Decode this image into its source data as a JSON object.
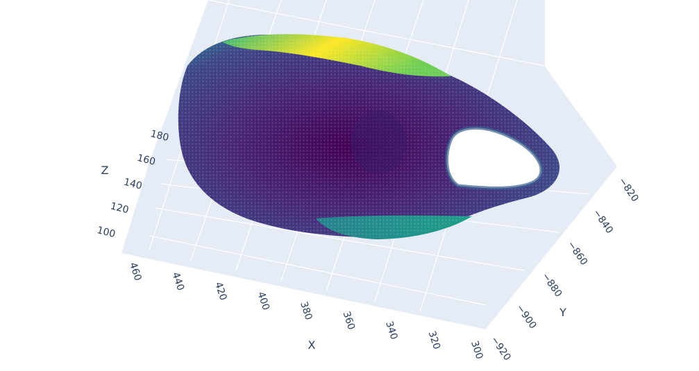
{
  "chart_data": {
    "type": "scatter",
    "subtype": "3d-point-cloud",
    "title": "",
    "colorscale": "viridis",
    "colorscale_stops": [
      "#440154",
      "#482878",
      "#3e4989",
      "#31688e",
      "#26828e",
      "#1f9e89",
      "#35b779",
      "#6ece58",
      "#b5de2b",
      "#fde725"
    ],
    "scene_background": "#e5ecf6",
    "gridline_color": "#ffffff",
    "grid": true,
    "legend": "none",
    "x_axis": {
      "title": "X",
      "range": [
        300,
        470
      ],
      "ticks": [
        460,
        440,
        420,
        400,
        380,
        360,
        340,
        320,
        300
      ]
    },
    "y_axis": {
      "title": "Y",
      "range": [
        -925,
        -815
      ],
      "ticks": [
        -820,
        -840,
        -860,
        -880,
        -900,
        -920
      ]
    },
    "z_axis": {
      "title": "Z",
      "range": [
        90,
        190
      ],
      "ticks": [
        180,
        160,
        140,
        120,
        100
      ]
    }
  }
}
